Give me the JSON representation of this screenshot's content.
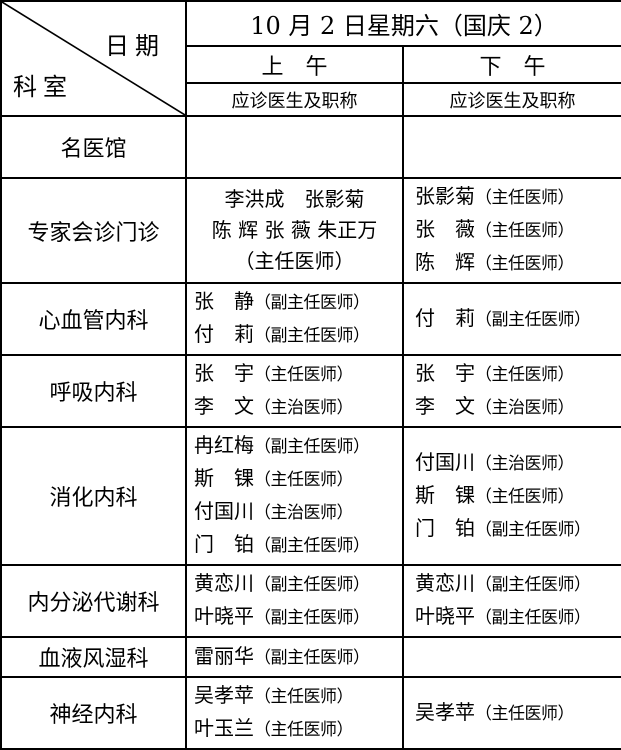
{
  "table": {
    "colors": {
      "border": "#000000",
      "text": "#000000",
      "background": "#ffffff"
    },
    "corner": {
      "date_label": "日期",
      "dept_label": "科室"
    },
    "date_title": "10 月 2 日星期六（国庆 2）",
    "columns": [
      {
        "period": "上　午",
        "sub_header": "应诊医生及职称"
      },
      {
        "period": "下　午",
        "sub_header": "应诊医生及职称"
      }
    ],
    "rows": [
      {
        "dept": "名医馆",
        "am": {
          "lines": []
        },
        "pm": {
          "lines": []
        }
      },
      {
        "dept": "专家会诊门诊",
        "am": {
          "align": "center",
          "lines": [
            {
              "text": "李洪成　张影菊"
            },
            {
              "text": "陈 辉 张 薇 朱正万"
            },
            {
              "text": "（主任医师）"
            }
          ]
        },
        "pm": {
          "lines": [
            {
              "name": "张影菊",
              "title": "（主任医师）"
            },
            {
              "name": "张　薇",
              "title": "（主任医师）"
            },
            {
              "name": "陈　辉",
              "title": "（主任医师）"
            }
          ]
        }
      },
      {
        "dept": "心血管内科",
        "am": {
          "lines": [
            {
              "name": "张　静",
              "title": "（副主任医师）"
            },
            {
              "name": "付　莉",
              "title": "（副主任医师）"
            }
          ]
        },
        "pm": {
          "lines": [
            {
              "name": "付　莉",
              "title": "（副主任医师）"
            }
          ]
        }
      },
      {
        "dept": "呼吸内科",
        "am": {
          "lines": [
            {
              "name": "张　宇",
              "title": "（主任医师）"
            },
            {
              "name": "李　文",
              "title": "（主治医师）"
            }
          ]
        },
        "pm": {
          "lines": [
            {
              "name": "张　宇",
              "title": "（主任医师）"
            },
            {
              "name": "李　文",
              "title": "（主治医师）"
            }
          ]
        }
      },
      {
        "dept": "消化内科",
        "am": {
          "lines": [
            {
              "name": "冉红梅",
              "title": "（副主任医师）"
            },
            {
              "name": "斯　锞",
              "title": "（主任医师）"
            },
            {
              "name": "付国川",
              "title": "（主治医师）"
            },
            {
              "name": "门　铂",
              "title": "（副主任医师）"
            }
          ]
        },
        "pm": {
          "lines": [
            {
              "name": "付国川",
              "title": "（主治医师）"
            },
            {
              "name": "斯　锞",
              "title": "（主任医师）"
            },
            {
              "name": "门　铂",
              "title": "（副主任医师）"
            }
          ]
        }
      },
      {
        "dept": "内分泌代谢科",
        "am": {
          "lines": [
            {
              "name": "黄恋川",
              "title": "（副主任医师）"
            },
            {
              "name": "叶晓平",
              "title": "（副主任医师）"
            }
          ]
        },
        "pm": {
          "lines": [
            {
              "name": "黄恋川",
              "title": "（副主任医师）"
            },
            {
              "name": "叶晓平",
              "title": "（副主任医师）"
            }
          ]
        }
      },
      {
        "dept": "血液风湿科",
        "am": {
          "lines": [
            {
              "name": "雷丽华",
              "title": "（副主任医师）"
            }
          ]
        },
        "pm": {
          "lines": []
        }
      },
      {
        "dept": "神经内科",
        "am": {
          "lines": [
            {
              "name": "吴孝苹",
              "title": "（主任医师）"
            },
            {
              "name": "叶玉兰",
              "title": "（主任医师）"
            }
          ]
        },
        "pm": {
          "lines": [
            {
              "name": "吴孝苹",
              "title": "（主任医师）"
            }
          ]
        }
      }
    ]
  }
}
